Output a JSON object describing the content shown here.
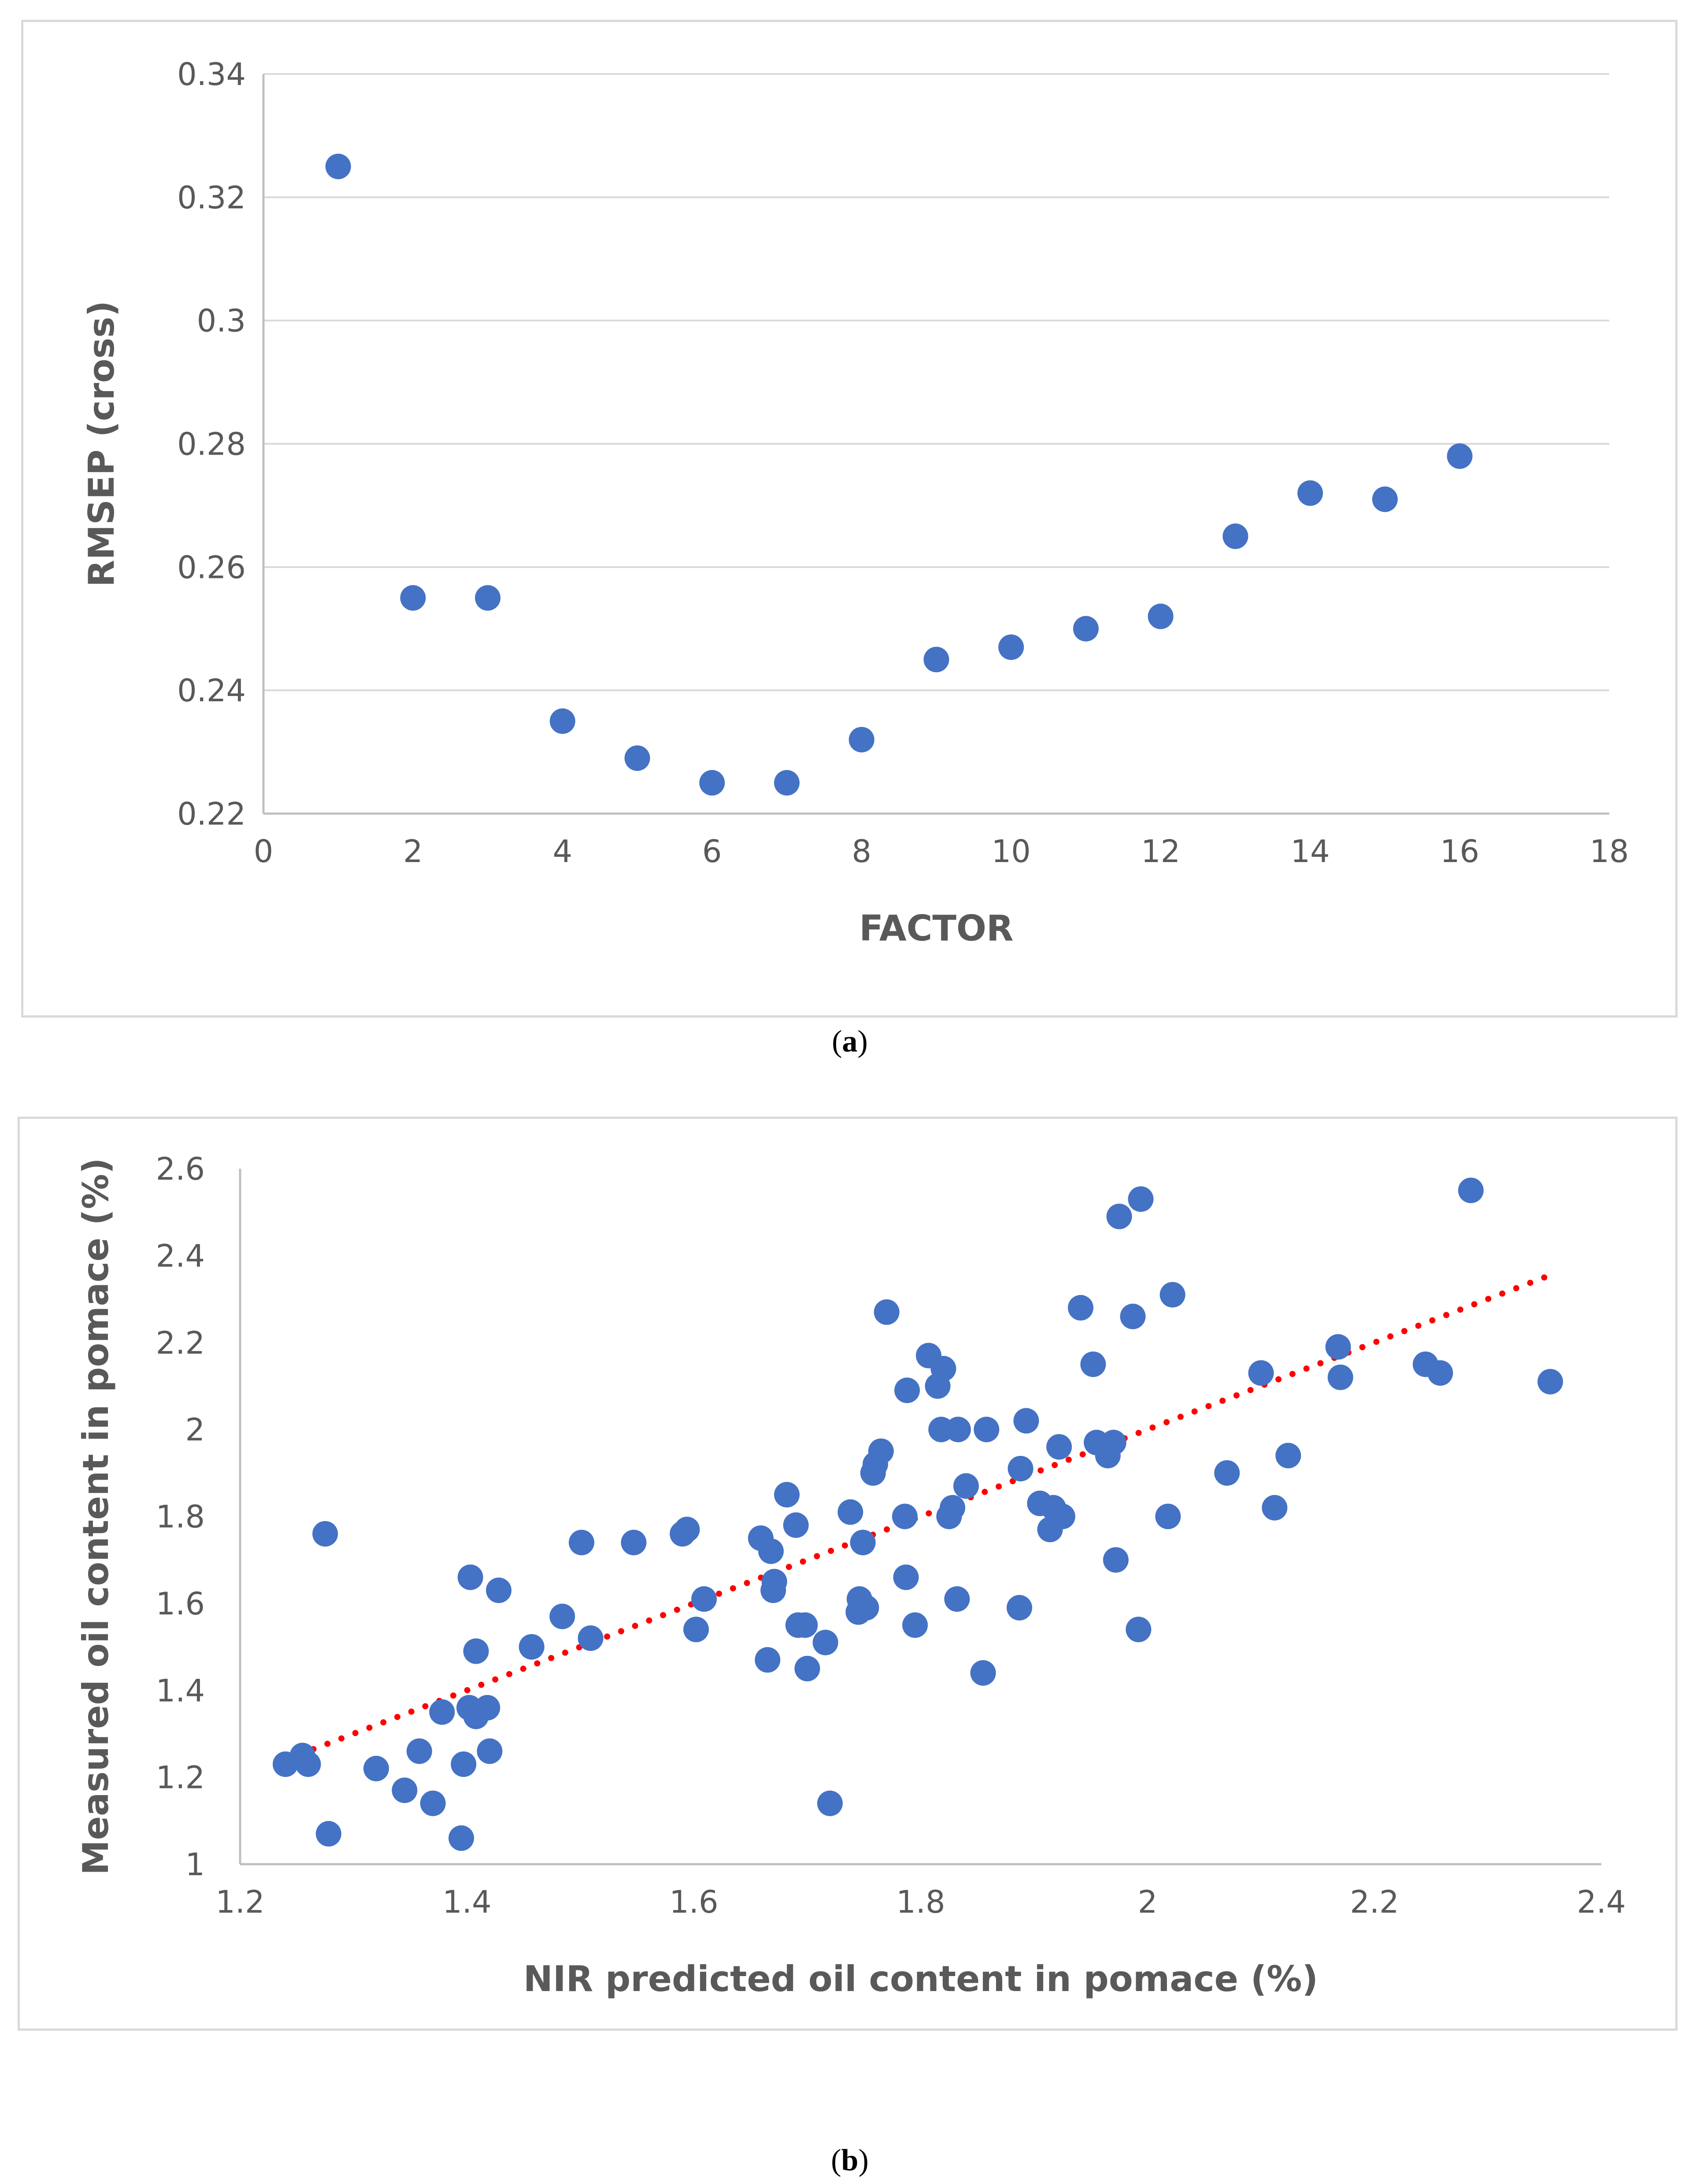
{
  "chart_data": [
    {
      "id": "a",
      "type": "scatter",
      "panel_label": "a",
      "title": "",
      "xlabel": "FACTOR",
      "ylabel": "RMSEP (cross)",
      "xlim": [
        0,
        18
      ],
      "ylim": [
        0.22,
        0.34
      ],
      "xticks": [
        0,
        2,
        4,
        6,
        8,
        10,
        12,
        14,
        16,
        18
      ],
      "yticks": [
        0.22,
        0.24,
        0.26,
        0.28,
        0.3,
        0.32,
        0.34
      ],
      "xtick_labels": [
        "0",
        "2",
        "4",
        "6",
        "8",
        "10",
        "12",
        "14",
        "16",
        "18"
      ],
      "ytick_labels": [
        "0.22",
        "0.24",
        "0.26",
        "0.28",
        "0.3",
        "0.32",
        "0.34"
      ],
      "grid": "horizontal",
      "marker_color": "#4472c4",
      "points": [
        [
          1,
          0.325
        ],
        [
          2,
          0.255
        ],
        [
          3,
          0.255
        ],
        [
          4,
          0.235
        ],
        [
          5,
          0.229
        ],
        [
          6,
          0.225
        ],
        [
          7,
          0.225
        ],
        [
          8,
          0.232
        ],
        [
          9,
          0.245
        ],
        [
          10,
          0.247
        ],
        [
          11,
          0.25
        ],
        [
          12,
          0.252
        ],
        [
          13,
          0.265
        ],
        [
          14,
          0.272
        ],
        [
          15,
          0.271
        ],
        [
          16,
          0.278
        ]
      ]
    },
    {
      "id": "b",
      "type": "scatter",
      "panel_label": "b",
      "title": "",
      "xlabel": "NIR predicted oil content in pomace (%)",
      "ylabel": "Measured oil content in pomace (%)",
      "xlim": [
        1.2,
        2.4
      ],
      "ylim": [
        1,
        2.6
      ],
      "xticks": [
        1.2,
        1.4,
        1.6,
        1.8,
        2,
        2.2,
        2.4
      ],
      "yticks": [
        1,
        1.2,
        1.4,
        1.6,
        1.8,
        2,
        2.2,
        2.4,
        2.6
      ],
      "xtick_labels": [
        "1.2",
        "1.4",
        "1.6",
        "1.8",
        "2",
        "2.2",
        "2.4"
      ],
      "ytick_labels": [
        "1",
        "1.2",
        "1.4",
        "1.6",
        "1.8",
        "2",
        "2.2",
        "2.4",
        "2.6"
      ],
      "grid": "none",
      "marker_color": "#4472c4",
      "trendline": {
        "type": "linear",
        "color": "#ff0000",
        "style": "dotted",
        "from": [
          1.24,
          1.24
        ],
        "to": [
          2.35,
          2.35
        ]
      },
      "points": [
        [
          1.24,
          1.23
        ],
        [
          1.255,
          1.25
        ],
        [
          1.26,
          1.23
        ],
        [
          1.275,
          1.76
        ],
        [
          1.278,
          1.07
        ],
        [
          1.32,
          1.22
        ],
        [
          1.345,
          1.17
        ],
        [
          1.358,
          1.26
        ],
        [
          1.37,
          1.14
        ],
        [
          1.378,
          1.35
        ],
        [
          1.395,
          1.06
        ],
        [
          1.397,
          1.23
        ],
        [
          1.402,
          1.36
        ],
        [
          1.403,
          1.66
        ],
        [
          1.408,
          1.34
        ],
        [
          1.408,
          1.49
        ],
        [
          1.418,
          1.36
        ],
        [
          1.42,
          1.26
        ],
        [
          1.428,
          1.63
        ],
        [
          1.457,
          1.5
        ],
        [
          1.484,
          1.57
        ],
        [
          1.501,
          1.74
        ],
        [
          1.509,
          1.52
        ],
        [
          1.547,
          1.74
        ],
        [
          1.59,
          1.76
        ],
        [
          1.594,
          1.77
        ],
        [
          1.602,
          1.54
        ],
        [
          1.609,
          1.61
        ],
        [
          1.659,
          1.75
        ],
        [
          1.665,
          1.47
        ],
        [
          1.668,
          1.72
        ],
        [
          1.67,
          1.63
        ],
        [
          1.671,
          1.65
        ],
        [
          1.682,
          1.85
        ],
        [
          1.69,
          1.78
        ],
        [
          1.692,
          1.55
        ],
        [
          1.698,
          1.55
        ],
        [
          1.7,
          1.45
        ],
        [
          1.716,
          1.51
        ],
        [
          1.72,
          1.14
        ],
        [
          1.738,
          1.81
        ],
        [
          1.745,
          1.58
        ],
        [
          1.746,
          1.61
        ],
        [
          1.749,
          1.74
        ],
        [
          1.752,
          1.59
        ],
        [
          1.758,
          1.9
        ],
        [
          1.76,
          1.92
        ],
        [
          1.765,
          1.95
        ],
        [
          1.77,
          2.27
        ],
        [
          1.786,
          1.8
        ],
        [
          1.787,
          1.66
        ],
        [
          1.788,
          2.09
        ],
        [
          1.795,
          1.55
        ],
        [
          1.807,
          2.17
        ],
        [
          1.815,
          2.1
        ],
        [
          1.818,
          2.0
        ],
        [
          1.82,
          2.14
        ],
        [
          1.825,
          1.8
        ],
        [
          1.828,
          1.82
        ],
        [
          1.832,
          1.61
        ],
        [
          1.833,
          2.0
        ],
        [
          1.84,
          1.87
        ],
        [
          1.855,
          1.44
        ],
        [
          1.858,
          2.0
        ],
        [
          1.887,
          1.59
        ],
        [
          1.888,
          1.91
        ],
        [
          1.893,
          2.02
        ],
        [
          1.905,
          1.83
        ],
        [
          1.914,
          1.77
        ],
        [
          1.917,
          1.82
        ],
        [
          1.922,
          1.96
        ],
        [
          1.925,
          1.8
        ],
        [
          1.941,
          2.28
        ],
        [
          1.952,
          2.15
        ],
        [
          1.955,
          1.97
        ],
        [
          1.965,
          1.94
        ],
        [
          1.97,
          1.97
        ],
        [
          1.972,
          1.7
        ],
        [
          1.975,
          2.49
        ],
        [
          1.987,
          2.26
        ],
        [
          1.992,
          1.54
        ],
        [
          1.994,
          2.53
        ],
        [
          2.018,
          1.8
        ],
        [
          2.022,
          2.31
        ],
        [
          2.07,
          1.9
        ],
        [
          2.1,
          2.13
        ],
        [
          2.112,
          1.82
        ],
        [
          2.124,
          1.94
        ],
        [
          2.168,
          2.19
        ],
        [
          2.17,
          2.12
        ],
        [
          2.245,
          2.15
        ],
        [
          2.258,
          2.13
        ],
        [
          2.285,
          2.55
        ],
        [
          2.355,
          2.11
        ]
      ]
    }
  ]
}
